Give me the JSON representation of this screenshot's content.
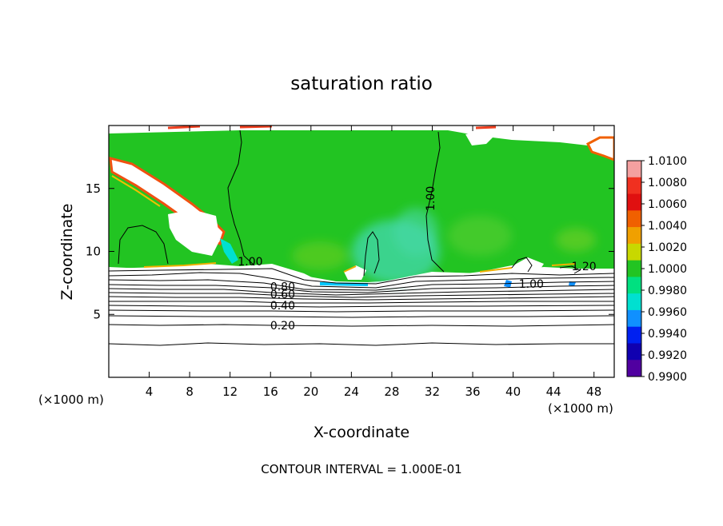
{
  "chart_data": {
    "type": "heatmap",
    "title": "saturation ratio",
    "xlabel": "X-coordinate",
    "ylabel": "Z-coordinate",
    "x_unit_left": "(×1000 m)",
    "x_unit_right": "(×1000 m)",
    "footer": "CONTOUR INTERVAL = 1.000E-01",
    "xlim": [
      0,
      50
    ],
    "ylim": [
      0,
      20
    ],
    "x_ticks": [
      4,
      8,
      12,
      16,
      20,
      24,
      28,
      32,
      36,
      40,
      44,
      48
    ],
    "y_ticks": [
      5,
      10,
      15
    ],
    "colorbar": {
      "labels": [
        "1.0100",
        "1.0080",
        "1.0060",
        "1.0040",
        "1.0020",
        "1.0000",
        "0.9980",
        "0.9960",
        "0.9940",
        "0.9920",
        "0.9900"
      ],
      "colors": [
        "#f4a0a0",
        "#f03020",
        "#e01010",
        "#f06000",
        "#f0a000",
        "#c8d800",
        "#22c422",
        "#00e080",
        "#00e0d0",
        "#1090ff",
        "#0020f0",
        "#1000b0",
        "#5000a0"
      ]
    },
    "contour_labels": [
      {
        "text": "1.00",
        "x": 32.2,
        "z": 14.2
      },
      {
        "text": "1.00",
        "x": 14.0,
        "z": 8.9
      },
      {
        "text": "1.00",
        "x": 41.8,
        "z": 7.1
      },
      {
        "text": "1.20",
        "x": 47.0,
        "z": 8.5
      },
      {
        "text": "0.80",
        "x": 17.2,
        "z": 6.9
      },
      {
        "text": "0.60",
        "x": 17.2,
        "z": 6.3
      },
      {
        "text": "0.40",
        "x": 17.2,
        "z": 5.4
      },
      {
        "text": "0.20",
        "x": 17.2,
        "z": 3.8
      }
    ],
    "grid": false
  }
}
